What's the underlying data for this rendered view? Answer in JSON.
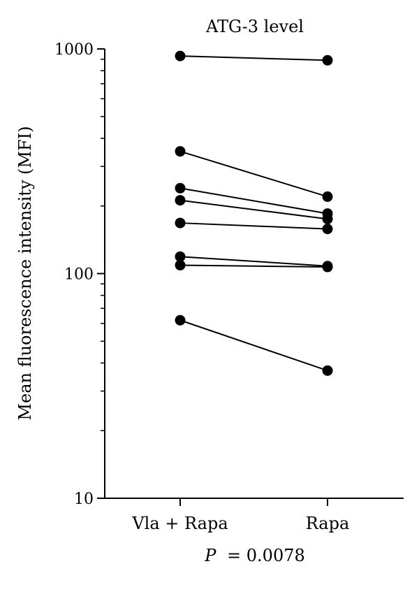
{
  "chart_data": {
    "type": "line",
    "title": "ATG-3 level",
    "xlabel": "",
    "ylabel": "Mean fluorescence intensity (MFI)",
    "categories": [
      "Vla + Rapa",
      "Rapa"
    ],
    "yscale": "log",
    "ylim": [
      10,
      1000
    ],
    "yticks": [
      {
        "value": 10,
        "label": "10"
      },
      {
        "value": 100,
        "label": "100"
      },
      {
        "value": 1000,
        "label": "1000"
      }
    ],
    "grid": false,
    "legend": "none",
    "series": [
      {
        "values": [
          930,
          890
        ]
      },
      {
        "values": [
          350,
          220
        ]
      },
      {
        "values": [
          240,
          185
        ]
      },
      {
        "values": [
          212,
          175
        ]
      },
      {
        "values": [
          168,
          158
        ]
      },
      {
        "values": [
          119,
          108
        ]
      },
      {
        "values": [
          109,
          107
        ]
      },
      {
        "values": [
          62,
          37
        ]
      }
    ],
    "annotation": {
      "p_symbol": "P",
      "p_text": "= 0.0078"
    },
    "colors": {
      "line": "#000000",
      "marker": "#000000",
      "axis": "#000000"
    }
  }
}
